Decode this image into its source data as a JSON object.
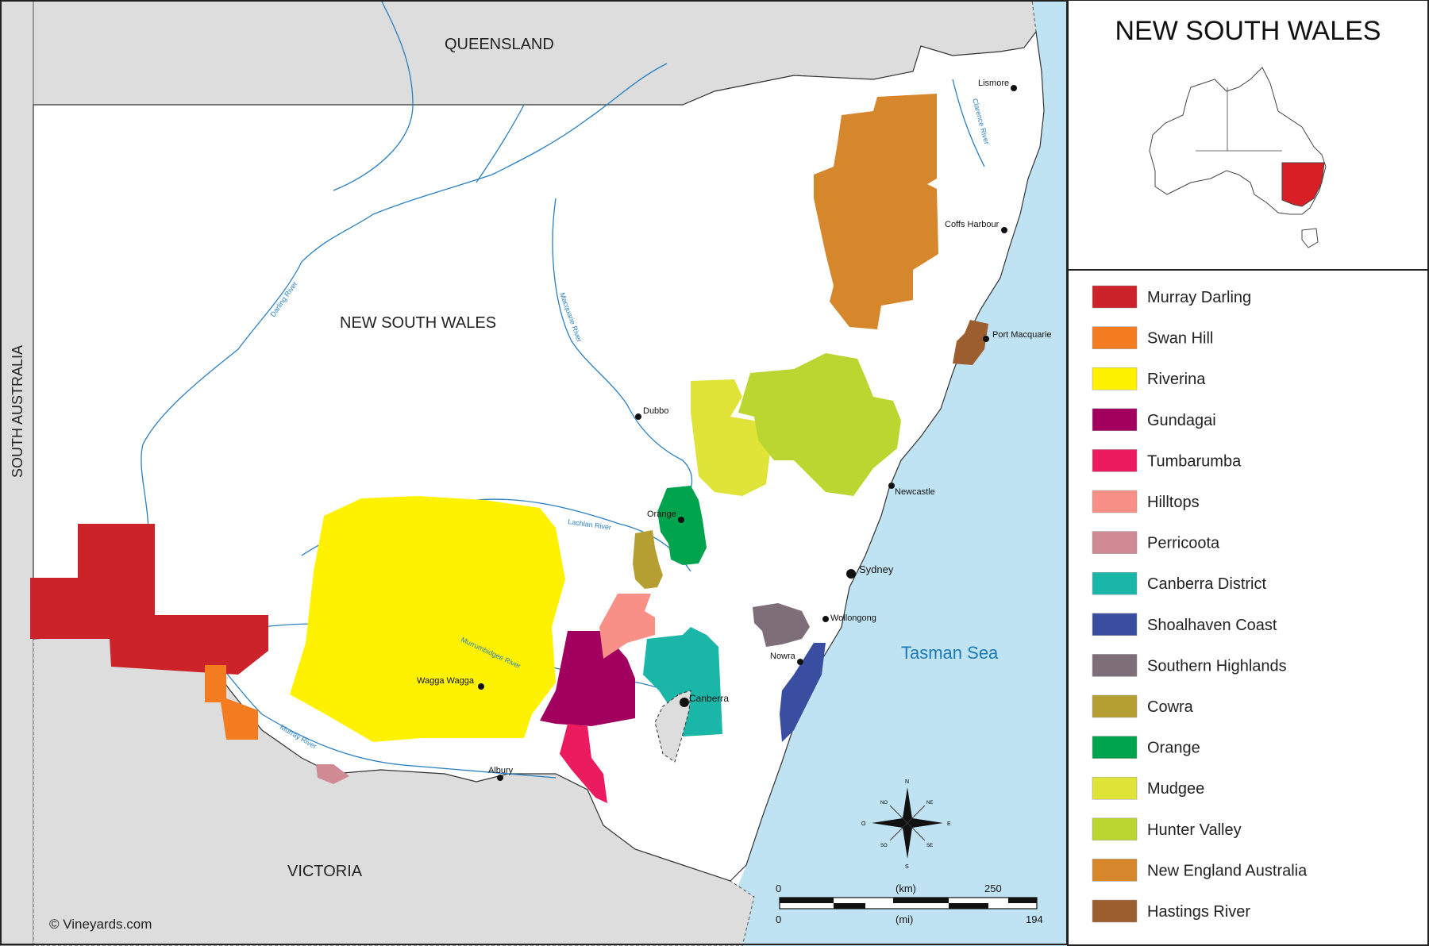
{
  "title": "NEW SOUTH WALES",
  "map_labels": {
    "queensland": "QUEENSLAND",
    "south_australia": "SOUTH AUSTRALIA",
    "victoria": "VICTORIA",
    "nsw": "NEW SOUTH WALES",
    "sea": "Tasman Sea"
  },
  "rivers": {
    "darling": "Darling River",
    "macquarie": "Macquarie River",
    "lachlan": "Lachlan River",
    "murrumbidgee": "Murrumbidgee River",
    "murray": "Murray River",
    "clarence": "Clarence River"
  },
  "cities": {
    "lismore": "Lismore",
    "coffs": "Coffs Harbour",
    "port_macquarie": "Port Macquarie",
    "dubbo": "Dubbo",
    "newcastle": "Newcastle",
    "orange": "Orange",
    "sydney": "Sydney",
    "wollongong": "Wollongong",
    "nowra": "Nowra",
    "canberra": "Canberra",
    "wagga": "Wagga Wagga",
    "albury": "Albury"
  },
  "compass": {
    "n": "N",
    "s": "S",
    "e": "E",
    "o": "O",
    "ne": "NE",
    "no": "NO",
    "se": "SE",
    "so": "SO"
  },
  "scale": {
    "km_zero": "0",
    "km_unit": "(km)",
    "km_max": "250",
    "mi_zero": "0",
    "mi_unit": "(mi)",
    "mi_max": "194"
  },
  "copyright": "© Vineyards.com",
  "legend": [
    {
      "label": "Murray Darling",
      "color": "#cc2229"
    },
    {
      "label": "Swan Hill",
      "color": "#f37b20"
    },
    {
      "label": "Riverina",
      "color": "#fff200"
    },
    {
      "label": "Gundagai",
      "color": "#a1005f"
    },
    {
      "label": "Tumbarumba",
      "color": "#ec1a5e"
    },
    {
      "label": "Hilltops",
      "color": "#f99087"
    },
    {
      "label": "Perricoota",
      "color": "#cf8a93"
    },
    {
      "label": "Canberra District",
      "color": "#1ab7a8"
    },
    {
      "label": "Shoalhaven Coast",
      "color": "#3a4ea1"
    },
    {
      "label": "Southern Highlands",
      "color": "#7d6e78"
    },
    {
      "label": "Cowra",
      "color": "#b59f33"
    },
    {
      "label": "Orange",
      "color": "#00a34e"
    },
    {
      "label": "Mudgee",
      "color": "#e0e338"
    },
    {
      "label": "Hunter Valley",
      "color": "#bcd631"
    },
    {
      "label": "New England Australia",
      "color": "#d6862b"
    },
    {
      "label": "Hastings River",
      "color": "#9c5e2e"
    }
  ],
  "colors": {
    "sea": "#bfe3f3",
    "other_state": "#dddddd",
    "river": "#2a7fc0",
    "highlight_state": "#d81f26"
  }
}
